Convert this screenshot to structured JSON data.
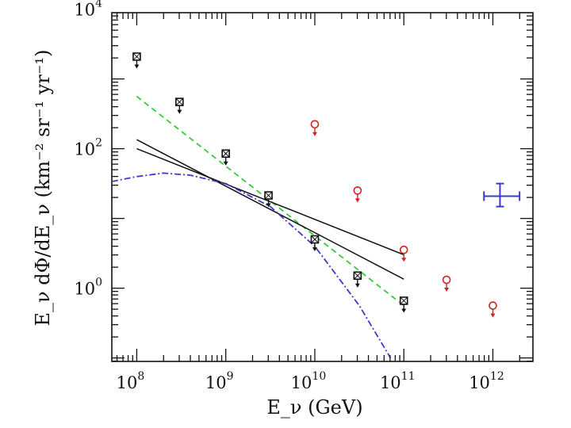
{
  "chart_data": {
    "type": "scatter",
    "title": "",
    "xlabel": "E_ν (GeV)",
    "ylabel": "E_ν dΦ/dE_ν (km⁻² sr⁻¹ yr⁻¹)",
    "x_scale": "log",
    "y_scale": "log",
    "xlim_log10": [
      7.72,
      12.45
    ],
    "ylim_log10": [
      -1.05,
      3.95
    ],
    "x_ticks": [
      {
        "base": "10",
        "exp": "8",
        "log": 8
      },
      {
        "base": "10",
        "exp": "9",
        "log": 9
      },
      {
        "base": "10",
        "exp": "10",
        "log": 10
      },
      {
        "base": "10",
        "exp": "11",
        "log": 11
      },
      {
        "base": "10",
        "exp": "12",
        "log": 12
      }
    ],
    "y_ticks": [
      {
        "base": "10",
        "exp": "0",
        "log": 0
      },
      {
        "base": "10",
        "exp": "2",
        "log": 2
      },
      {
        "base": "10",
        "exp": "4",
        "log": 4
      }
    ],
    "series": [
      {
        "name": "black square upper limits",
        "kind": "upper-limit",
        "color": "#111111",
        "marker": "square",
        "points": [
          {
            "log_x": 8.0,
            "log_y": 3.32
          },
          {
            "log_x": 8.48,
            "log_y": 2.67
          },
          {
            "log_x": 9.0,
            "log_y": 1.93
          },
          {
            "log_x": 9.48,
            "log_y": 1.33
          },
          {
            "log_x": 10.0,
            "log_y": 0.7
          },
          {
            "log_x": 10.48,
            "log_y": 0.18
          },
          {
            "log_x": 11.0,
            "log_y": -0.18
          }
        ]
      },
      {
        "name": "red circle upper limits",
        "kind": "upper-limit",
        "color": "#d42020",
        "marker": "circle",
        "points": [
          {
            "log_x": 10.0,
            "log_y": 2.35
          },
          {
            "log_x": 10.48,
            "log_y": 1.4
          },
          {
            "log_x": 11.0,
            "log_y": 0.55
          },
          {
            "log_x": 11.48,
            "log_y": 0.12
          },
          {
            "log_x": 12.0,
            "log_y": -0.25
          }
        ]
      },
      {
        "name": "green dashed power law",
        "kind": "line",
        "color": "#33cc33",
        "style": "dashed",
        "points": [
          {
            "log_x": 8.0,
            "log_y": 2.75
          },
          {
            "log_x": 11.0,
            "log_y": -0.25
          }
        ]
      },
      {
        "name": "black solid line (steep)",
        "kind": "line",
        "color": "#111111",
        "style": "solid",
        "points": [
          {
            "log_x": 8.0,
            "log_y": 2.13
          },
          {
            "log_x": 11.0,
            "log_y": 0.13
          }
        ]
      },
      {
        "name": "black solid line (shallow)",
        "kind": "line",
        "color": "#111111",
        "style": "solid",
        "points": [
          {
            "log_x": 8.0,
            "log_y": 2.0
          },
          {
            "log_x": 11.0,
            "log_y": 0.48
          }
        ]
      },
      {
        "name": "blue dash-dot curve",
        "kind": "line",
        "color": "#3a3acc",
        "style": "dashdot",
        "points": [
          {
            "log_x": 7.72,
            "log_y": 1.53
          },
          {
            "log_x": 8.0,
            "log_y": 1.6
          },
          {
            "log_x": 8.3,
            "log_y": 1.65
          },
          {
            "log_x": 8.6,
            "log_y": 1.62
          },
          {
            "log_x": 9.0,
            "log_y": 1.5
          },
          {
            "log_x": 9.5,
            "log_y": 1.17
          },
          {
            "log_x": 10.0,
            "log_y": 0.6
          },
          {
            "log_x": 10.5,
            "log_y": -0.25
          },
          {
            "log_x": 10.85,
            "log_y": -1.0
          }
        ]
      },
      {
        "name": "blue measurement with error bars",
        "kind": "error-bar",
        "color": "#3a3acc",
        "points": [
          {
            "log_x": 12.08,
            "log_y": 1.32,
            "x_low": 11.9,
            "x_high": 12.3,
            "y_low": 1.17,
            "y_high": 1.5
          }
        ]
      }
    ]
  }
}
